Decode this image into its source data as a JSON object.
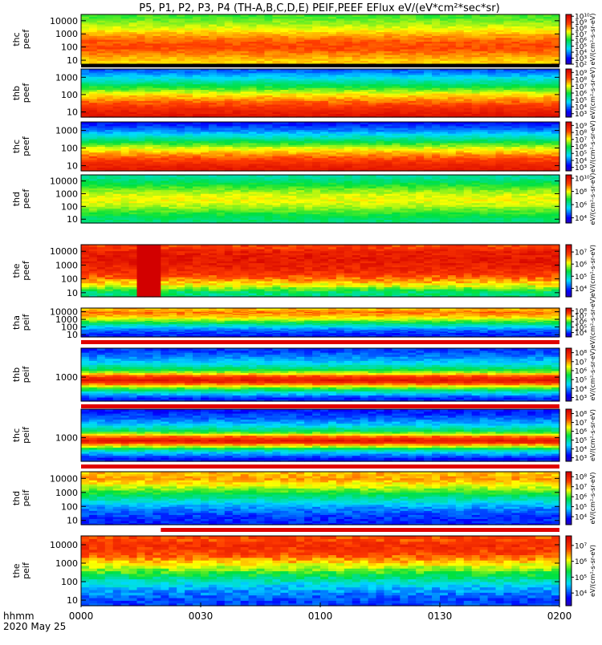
{
  "title": "P5, P1, P2, P3, P4 (TH-A,B,C,D,E) PEIF,PEEF EFlux eV/(eV*cm²*sec*sr)",
  "time_axis": {
    "label_line1": "hhmm",
    "label_line2": "2020 May 25",
    "ticks": [
      "0000",
      "0030",
      "0100",
      "0130",
      "0200"
    ],
    "tick_values_min": [
      0,
      30,
      60,
      90,
      120
    ],
    "range_min": [
      0,
      120
    ]
  },
  "chart_data": [
    {
      "type": "heatmap",
      "probe": "thc",
      "species": "peef",
      "ylabel": [
        "thc",
        "peef"
      ],
      "yscale": "log",
      "yticks": [
        "10",
        "100",
        "1000",
        "10000"
      ],
      "ylim": [
        5,
        30000
      ],
      "colorbar": {
        "scale": "log",
        "ticks": [
          "10²",
          "10³",
          "10⁴",
          "10⁵",
          "10⁶",
          "10⁷",
          "10⁸",
          "10⁹",
          "10¹⁰"
        ],
        "tick_exponents": [
          2,
          3,
          4,
          5,
          6,
          7,
          8,
          9,
          10
        ],
        "range_exp": [
          2,
          10.3
        ],
        "label": "eV/(cm²-s-sr-eV)"
      },
      "profile": {
        "energies": [
          10,
          30,
          100,
          300,
          1000,
          3000,
          10000,
          20000
        ],
        "log_flux": [
          7.8,
          8.3,
          8.8,
          8.6,
          8.0,
          7.3,
          6.8,
          6.5
        ]
      },
      "bottom_band": "black"
    },
    {
      "type": "heatmap",
      "probe": "thb",
      "species": "peef",
      "ylabel": [
        "thb",
        "peef"
      ],
      "yscale": "log",
      "yticks": [
        "10",
        "100",
        "1000"
      ],
      "ylim": [
        5,
        3000
      ],
      "colorbar": {
        "scale": "log",
        "ticks": [
          "10³",
          "10⁴",
          "10⁵",
          "10⁶",
          "10⁷",
          "10⁸",
          "10⁹"
        ],
        "tick_exponents": [
          3,
          4,
          5,
          6,
          7,
          8,
          9
        ],
        "range_exp": [
          2.5,
          9.5
        ],
        "label": "eV/(cm²-s-sr-eV)"
      },
      "profile": {
        "energies": [
          5,
          10,
          30,
          100,
          300,
          1000,
          3000
        ],
        "log_flux": [
          9.2,
          8.9,
          8.2,
          7.3,
          6.0,
          4.8,
          3.8
        ]
      }
    },
    {
      "type": "heatmap",
      "probe": "thc",
      "species": "peef",
      "ylabel": [
        "thc",
        "peef"
      ],
      "yscale": "log",
      "yticks": [
        "10",
        "100",
        "1000"
      ],
      "ylim": [
        5,
        3000
      ],
      "colorbar": {
        "scale": "log",
        "ticks": [
          "10³",
          "10⁴",
          "10⁵",
          "10⁶",
          "10⁷",
          "10⁸",
          "10⁹"
        ],
        "tick_exponents": [
          3,
          4,
          5,
          6,
          7,
          8,
          9
        ],
        "range_exp": [
          2.5,
          9.5
        ],
        "label": "eV/(cm²-s-sr-eV)"
      },
      "profile": {
        "energies": [
          5,
          10,
          30,
          100,
          300,
          1000,
          3000
        ],
        "log_flux": [
          9.0,
          8.8,
          8.1,
          7.0,
          5.6,
          4.2,
          3.3
        ]
      }
    },
    {
      "type": "heatmap",
      "probe": "thd",
      "species": "peef",
      "ylabel": [
        "thd",
        "peef"
      ],
      "yscale": "log",
      "yticks": [
        "10",
        "100",
        "1000",
        "10000"
      ],
      "ylim": [
        5,
        30000
      ],
      "colorbar": {
        "scale": "log",
        "ticks": [
          "10⁴",
          "10⁶",
          "10⁸",
          "10¹⁰"
        ],
        "tick_exponents": [
          4,
          6,
          8,
          10
        ],
        "range_exp": [
          3.2,
          10.5
        ],
        "label": "eV/(cm²-s-sr-eV)"
      },
      "profile": {
        "energies": [
          10,
          30,
          100,
          300,
          1000,
          3000,
          10000,
          20000
        ],
        "log_flux": [
          6.5,
          7.0,
          7.6,
          8.0,
          7.8,
          7.2,
          6.6,
          6.2
        ]
      }
    },
    {
      "type": "heatmap",
      "probe": "the",
      "species": "peef",
      "ylabel": [
        "the",
        "peef"
      ],
      "yscale": "log",
      "yticks": [
        "10",
        "100",
        "1000",
        "10000"
      ],
      "ylim": [
        5,
        30000
      ],
      "colorbar": {
        "scale": "log",
        "ticks": [
          "10⁴",
          "10⁵",
          "10⁶",
          "10⁷"
        ],
        "tick_exponents": [
          4,
          5,
          6,
          7
        ],
        "range_exp": [
          3.3,
          7.6
        ],
        "label": "eV/(cm²-s-sr-eV)"
      },
      "profile": {
        "energies": [
          10,
          30,
          100,
          300,
          1000,
          3000,
          10000,
          20000
        ],
        "log_flux": [
          5.2,
          6.0,
          6.6,
          7.0,
          7.2,
          7.3,
          7.2,
          6.9
        ]
      },
      "event": {
        "start_min": 15,
        "end_min": 20,
        "note": "saturated band"
      }
    },
    {
      "type": "heatmap",
      "probe": "tha",
      "species": "peif",
      "ylabel": [
        "tha",
        "peif"
      ],
      "yscale": "log",
      "yticks": [
        "10",
        "100",
        "1000",
        "10000"
      ],
      "ylim": [
        5,
        30000
      ],
      "colorbar": {
        "scale": "log",
        "ticks": [
          "10⁴",
          "10⁵",
          "10⁶",
          "10⁷",
          "10⁸"
        ],
        "tick_exponents": [
          4,
          5,
          6,
          7,
          8
        ],
        "range_exp": [
          3.2,
          8.5
        ],
        "label": "eV/(cm²-s-sr-eV)"
      },
      "profile": {
        "energies": [
          10,
          30,
          100,
          300,
          1000,
          3000,
          10000,
          20000
        ],
        "log_flux": [
          4.0,
          4.2,
          4.8,
          5.6,
          6.4,
          7.0,
          7.3,
          7.0
        ]
      },
      "bottom_band": "red"
    },
    {
      "type": "heatmap",
      "probe": "thb",
      "species": "peif",
      "ylabel": [
        "thb",
        "peif"
      ],
      "yscale": "log",
      "yticks": [
        "1000"
      ],
      "ylim": [
        200,
        7000
      ],
      "colorbar": {
        "scale": "log",
        "ticks": [
          "10³",
          "10⁴",
          "10⁵",
          "10⁶",
          "10⁷",
          "10⁸"
        ],
        "tick_exponents": [
          3,
          4,
          5,
          6,
          7,
          8
        ],
        "range_exp": [
          2.6,
          8.5
        ],
        "label": "eV/(cm²-s-sr-eV)"
      },
      "profile": {
        "energies": [
          250,
          400,
          600,
          800,
          1100,
          1600,
          2500,
          4000,
          6000
        ],
        "log_flux": [
          3.5,
          5.0,
          6.8,
          8.2,
          7.4,
          5.6,
          4.6,
          4.0,
          3.6
        ]
      },
      "bottom_band": "red"
    },
    {
      "type": "heatmap",
      "probe": "thc",
      "species": "peif",
      "ylabel": [
        "thc",
        "peif"
      ],
      "yscale": "log",
      "yticks": [
        "1000"
      ],
      "ylim": [
        200,
        7000
      ],
      "colorbar": {
        "scale": "log",
        "ticks": [
          "10³",
          "10⁴",
          "10⁵",
          "10⁶",
          "10⁷",
          "10⁸"
        ],
        "tick_exponents": [
          3,
          4,
          5,
          6,
          7,
          8
        ],
        "range_exp": [
          2.6,
          8.5
        ],
        "label": "eV/(cm²-s-sr-eV)"
      },
      "profile": {
        "energies": [
          250,
          400,
          600,
          800,
          1100,
          1600,
          2500,
          4000,
          6000
        ],
        "log_flux": [
          3.4,
          4.6,
          6.6,
          8.2,
          7.2,
          5.4,
          4.4,
          3.8,
          3.4
        ]
      },
      "bottom_band": "red"
    },
    {
      "type": "heatmap",
      "probe": "thd",
      "species": "peif",
      "ylabel": [
        "thd",
        "peif"
      ],
      "yscale": "log",
      "yticks": [
        "10",
        "100",
        "1000",
        "10000"
      ],
      "ylim": [
        5,
        30000
      ],
      "colorbar": {
        "scale": "log",
        "ticks": [
          "10⁴",
          "10⁵",
          "10⁶",
          "10⁷",
          "10⁸"
        ],
        "tick_exponents": [
          4,
          5,
          6,
          7,
          8
        ],
        "range_exp": [
          3.2,
          8.5
        ],
        "label": "eV/(cm²-s-sr-eV)"
      },
      "profile": {
        "energies": [
          10,
          30,
          100,
          300,
          1000,
          3000,
          10000,
          20000
        ],
        "log_flux": [
          4.0,
          4.2,
          4.6,
          5.2,
          5.9,
          6.6,
          7.1,
          7.0
        ]
      },
      "bottom_band": "red_after_white",
      "white_until_min": 20
    },
    {
      "type": "heatmap",
      "probe": "the",
      "species": "peif",
      "ylabel": [
        "the",
        "peif"
      ],
      "yscale": "log",
      "yticks": [
        "10",
        "100",
        "1000",
        "10000"
      ],
      "ylim": [
        5,
        30000
      ],
      "colorbar": {
        "scale": "log",
        "ticks": [
          "10⁴",
          "10⁵",
          "10⁶",
          "10⁷"
        ],
        "tick_exponents": [
          4,
          5,
          6,
          7
        ],
        "range_exp": [
          3.2,
          7.6
        ],
        "label": "eV/(cm²-s-sr-eV)"
      },
      "profile": {
        "energies": [
          10,
          30,
          100,
          300,
          1000,
          3000,
          10000,
          20000
        ],
        "log_flux": [
          4.0,
          4.3,
          4.8,
          5.5,
          6.2,
          6.8,
          7.0,
          6.8
        ]
      }
    }
  ]
}
